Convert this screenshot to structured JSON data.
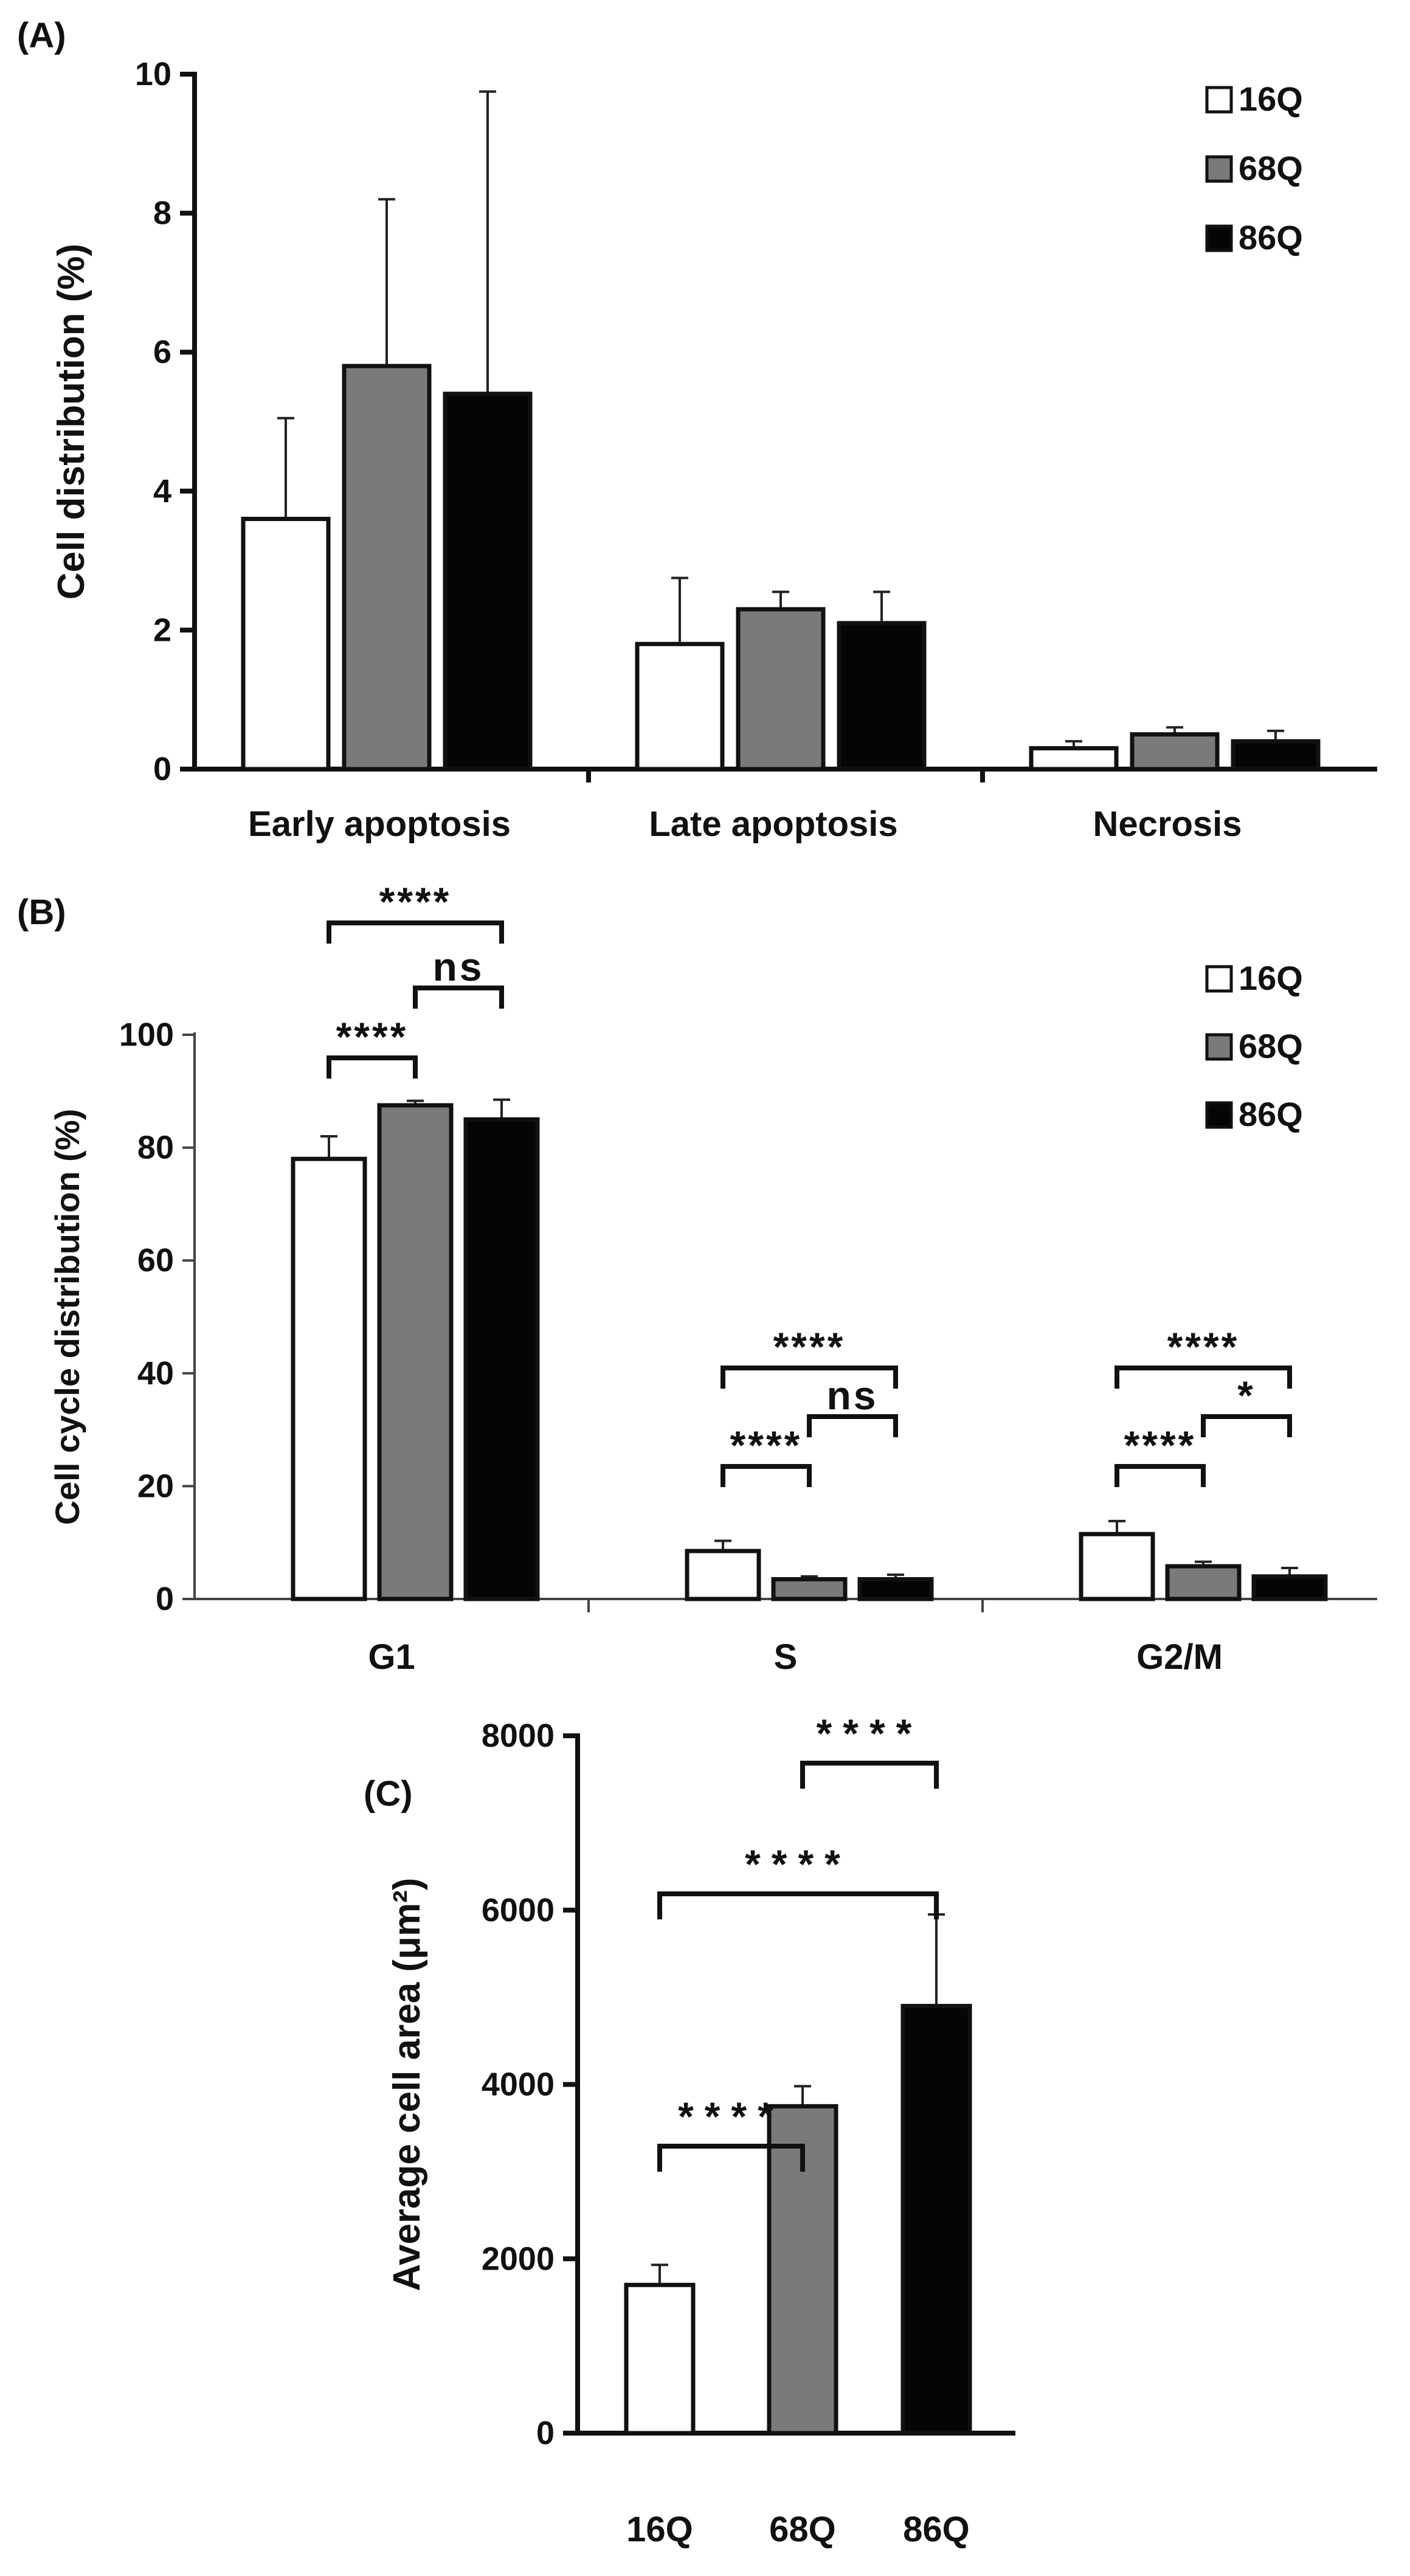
{
  "colors": {
    "16Q": "#ffffff",
    "68Q": "#7a7a7a",
    "86Q": "#050505",
    "outline": "#111111"
  },
  "chart_data": [
    {
      "panel": "(A)",
      "type": "bar",
      "ylabel": "Cell distribution (%)",
      "xlabel": "",
      "ylim": [
        0,
        10
      ],
      "yticks": [
        "0",
        "2",
        "4",
        "6",
        "8",
        "10"
      ],
      "categories": [
        "Early apoptosis",
        "Late apoptosis",
        "Necrosis"
      ],
      "series": [
        {
          "name": "16Q",
          "values": [
            3.6,
            1.8,
            0.3
          ],
          "errors": [
            1.45,
            0.95,
            0.1
          ]
        },
        {
          "name": "68Q",
          "values": [
            5.8,
            2.3,
            0.5
          ],
          "errors": [
            2.4,
            0.25,
            0.1
          ]
        },
        {
          "name": "86Q",
          "values": [
            5.4,
            2.1,
            0.4
          ],
          "errors": [
            4.35,
            0.45,
            0.15
          ]
        }
      ],
      "legend": [
        "16Q",
        "68Q",
        "86Q"
      ],
      "legend_position": "top-right",
      "significance": []
    },
    {
      "panel": "(B)",
      "type": "bar",
      "ylabel": "Cell cycle distribution (%)",
      "xlabel": "",
      "ylim": [
        0,
        100
      ],
      "yticks": [
        "0",
        "20",
        "40",
        "60",
        "80",
        "100"
      ],
      "categories": [
        "G1",
        "S",
        "G2/M"
      ],
      "series": [
        {
          "name": "16Q",
          "values": [
            78,
            8.5,
            11.5
          ],
          "errors": [
            4,
            1.8,
            2.3
          ]
        },
        {
          "name": "68Q",
          "values": [
            87.5,
            3.5,
            5.8
          ],
          "errors": [
            0.8,
            0.5,
            0.8
          ]
        },
        {
          "name": "86Q",
          "values": [
            85,
            3.5,
            4
          ],
          "errors": [
            3.5,
            0.8,
            1.5
          ]
        }
      ],
      "legend": [
        "16Q",
        "68Q",
        "86Q"
      ],
      "legend_position": "top-right",
      "significance": [
        {
          "category": 0,
          "from": 0,
          "to": 2,
          "label": "****",
          "level": 2
        },
        {
          "category": 0,
          "from": 1,
          "to": 2,
          "label": "ns",
          "level": 1
        },
        {
          "category": 0,
          "from": 0,
          "to": 1,
          "label": "****",
          "level": 0
        },
        {
          "category": 1,
          "from": 0,
          "to": 2,
          "label": "****",
          "level": 2
        },
        {
          "category": 1,
          "from": 1,
          "to": 2,
          "label": "ns",
          "level": 1
        },
        {
          "category": 1,
          "from": 0,
          "to": 1,
          "label": "****",
          "level": 0
        },
        {
          "category": 2,
          "from": 0,
          "to": 2,
          "label": "****",
          "level": 2
        },
        {
          "category": 2,
          "from": 1,
          "to": 2,
          "label": "*",
          "level": 1
        },
        {
          "category": 2,
          "from": 0,
          "to": 1,
          "label": "****",
          "level": 0
        }
      ]
    },
    {
      "panel": "(C)",
      "type": "bar",
      "ylabel": "Average cell area (μm²)",
      "xlabel": "",
      "ylim": [
        0,
        8000
      ],
      "yticks": [
        "0",
        "2000",
        "4000",
        "6000",
        "8000"
      ],
      "categories": [
        "16Q",
        "68Q",
        "86Q"
      ],
      "series": [
        {
          "name": "Average cell area",
          "values": [
            1700,
            3750,
            4900
          ],
          "errors": [
            230,
            230,
            1050
          ]
        }
      ],
      "significance": [
        {
          "from": 1,
          "to": 2,
          "label": "****",
          "level": 2
        },
        {
          "from": 0,
          "to": 2,
          "label": "****",
          "level": 1
        },
        {
          "from": 0,
          "to": 1,
          "label": "****",
          "level": 0
        }
      ]
    }
  ]
}
